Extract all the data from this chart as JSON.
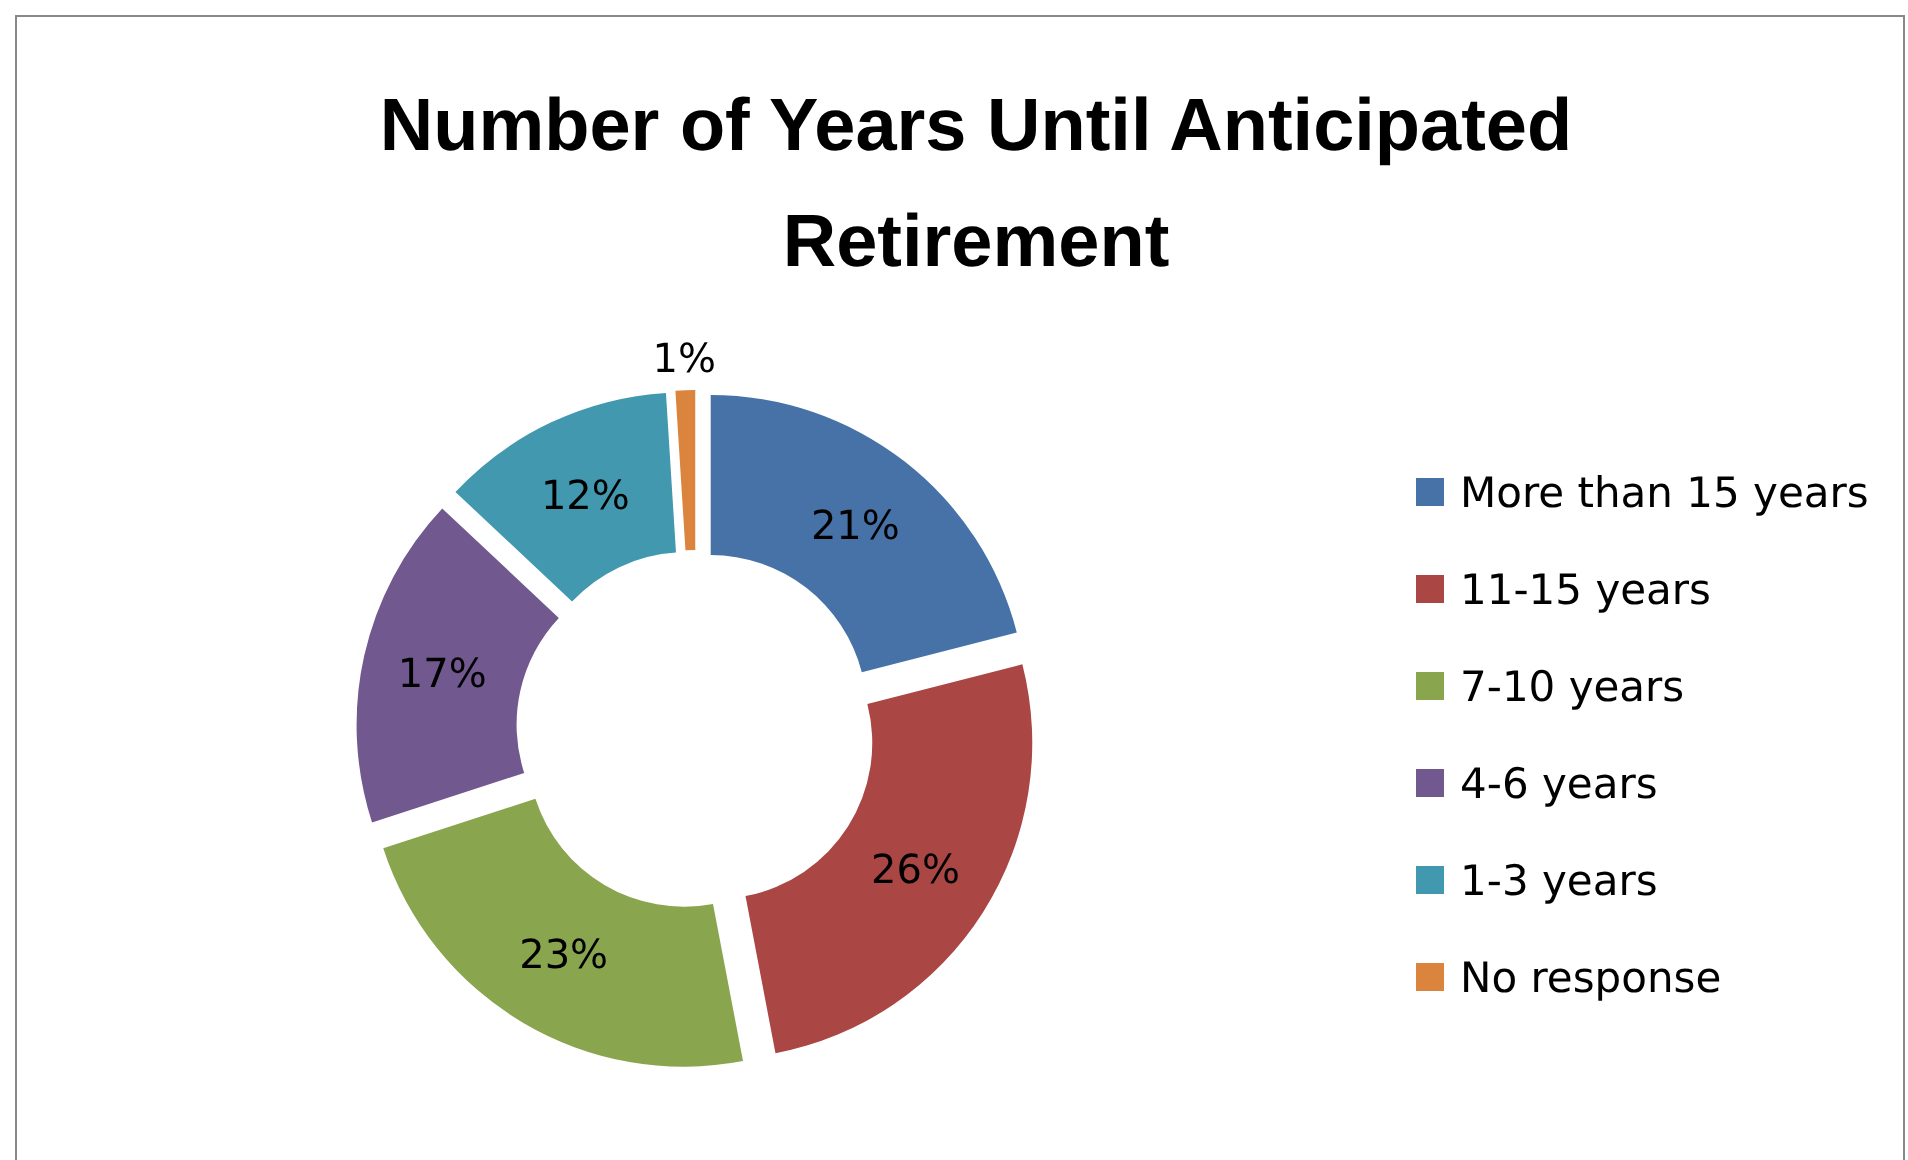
{
  "chart_data": {
    "type": "donut",
    "title": "Number of Years Until Anticipated Retirement",
    "categories": [
      "More than 15 years",
      "11-15 years",
      "7-10 years",
      "4-6 years",
      "1-3 years",
      "No response"
    ],
    "values": [
      21,
      26,
      23,
      17,
      12,
      1
    ],
    "colors": [
      "#4672a8",
      "#aa4643",
      "#89a54e",
      "#71588f",
      "#4198af",
      "#db843d"
    ],
    "value_labels": [
      "21%",
      "26%",
      "23%",
      "17%",
      "12%",
      "1%"
    ],
    "legend": "right"
  }
}
